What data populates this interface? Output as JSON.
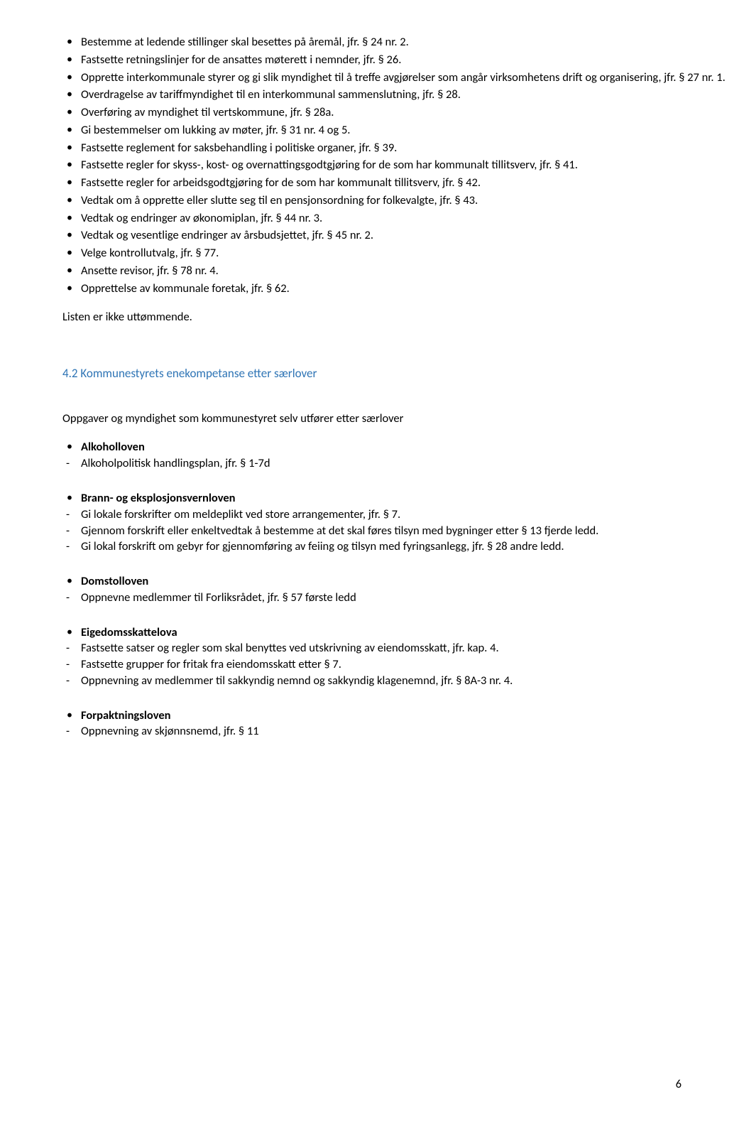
{
  "topList": [
    "Bestemme at ledende stillinger skal besettes på åremål, jfr. § 24 nr. 2.",
    "Fastsette retningslinjer for de ansattes møterett i nemnder, jfr. § 26.",
    "Opprette interkommunale styrer og gi slik myndighet til å treffe avgjørelser som angår virksomhetens drift og organisering, jfr. § 27 nr. 1.",
    "Overdragelse av tariffmyndighet til en interkommunal sammenslutning, jfr. § 28.",
    "Overføring av myndighet til vertskommune, jfr. § 28a.",
    "Gi bestemmelser om lukking av møter, jfr. § 31 nr. 4 og 5.",
    "Fastsette reglement for saksbehandling i politiske organer, jfr. § 39.",
    "Fastsette regler for skyss-, kost- og overnattingsgodtgjøring for de som har kommunalt tillitsverv, jfr. § 41.",
    "Fastsette regler for arbeidsgodtgjøring for de som har kommunalt tillitsverv, jfr. § 42.",
    "Vedtak om å opprette eller slutte seg til en pensjonsordning for folkevalgte, jfr. § 43.",
    "Vedtak og endringer av økonomiplan, jfr. § 44 nr. 3.",
    "Vedtak og vesentlige endringer av årsbudsjettet, jfr. § 45 nr. 2.",
    "Velge kontrollutvalg, jfr. § 77.",
    "Ansette revisor, jfr. § 78 nr. 4.",
    "Opprettelse av kommunale foretak, jfr. § 62."
  ],
  "afterListText": "Listen er ikke uttømmende.",
  "sectionHeading": "4.2 Kommunestyrets enekompetanse etter særlover",
  "subheading": "Oppgaver og myndighet som kommunestyret selv utfører etter særlover",
  "laws": [
    {
      "title": "Alkoholloven",
      "items": [
        "Alkoholpolitisk handlingsplan, jfr. § 1-7d"
      ]
    },
    {
      "title": "Brann- og eksplosjonsvernloven",
      "items": [
        "Gi lokale forskrifter om meldeplikt ved store arrangementer, jfr. § 7.",
        "Gjennom forskrift eller enkeltvedtak å bestemme at det skal føres tilsyn med bygninger etter § 13 fjerde ledd.",
        "Gi lokal forskrift om gebyr for gjennomføring av feiing og tilsyn med fyringsanlegg, jfr. § 28 andre ledd."
      ]
    },
    {
      "title": "Domstolloven",
      "items": [
        "Oppnevne medlemmer til Forliksrådet, jfr. § 57 første ledd"
      ]
    },
    {
      "title": "Eigedomsskattelova",
      "items": [
        "Fastsette satser og regler som skal benyttes ved utskrivning av eiendomsskatt, jfr. kap. 4.",
        "Fastsette grupper for fritak fra eiendomsskatt etter § 7.",
        "Oppnevning av medlemmer til sakkyndig nemnd og sakkyndig klagenemnd, jfr.  § 8A-3 nr. 4."
      ]
    },
    {
      "title": "Forpaktningsloven",
      "items": [
        "Oppnevning av skjønnsnemd, jfr. § 11"
      ]
    }
  ],
  "pageNumber": "6"
}
